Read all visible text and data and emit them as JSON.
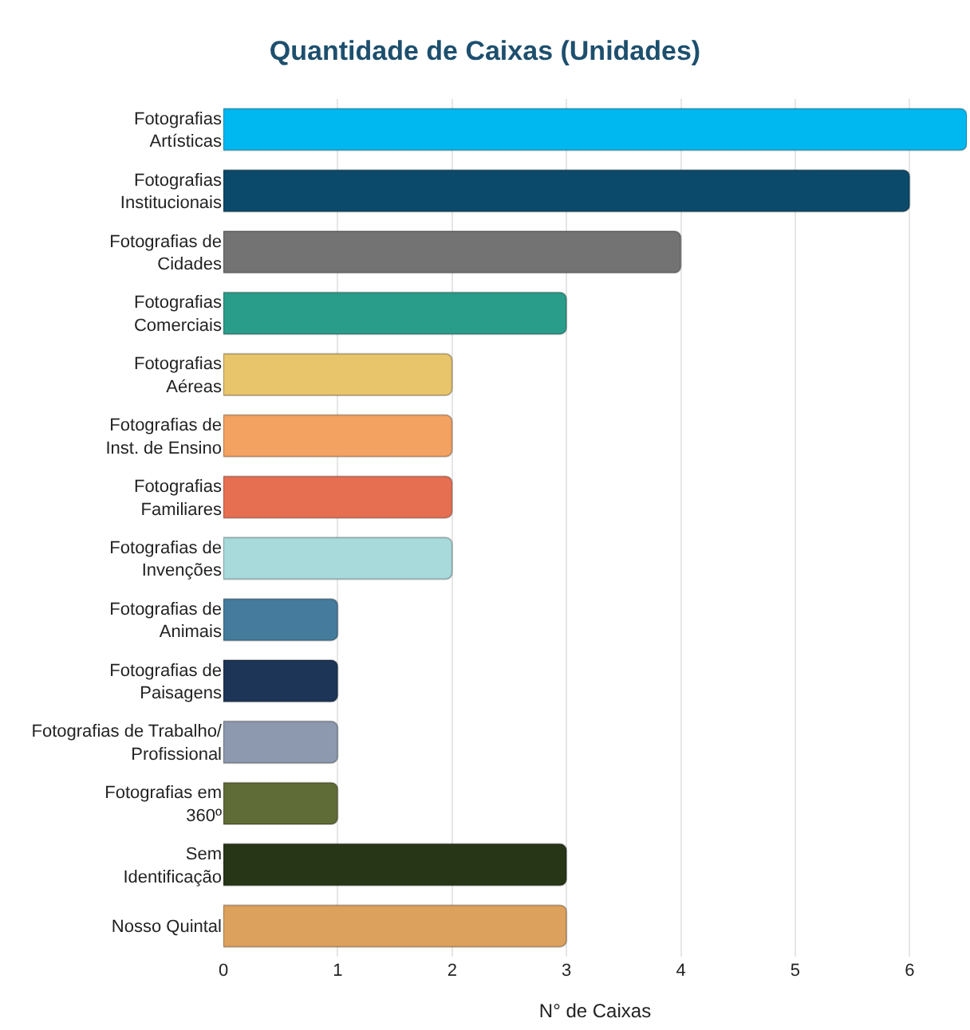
{
  "chart_data": {
    "type": "bar",
    "orientation": "horizontal",
    "title": "Quantidade de Caixas (Unidades)",
    "xlabel": "N° de Caixas",
    "categories": [
      "Fotografias\nArtísticas",
      "Fotografias\nInstitucionais",
      "Fotografias de\nCidades",
      "Fotografias\nComerciais",
      "Fotografias\nAéreas",
      "Fotografias de\nInst. de Ensino",
      "Fotografias\nFamiliares",
      "Fotografias de\nInvenções",
      "Fotografias de\nAnimais",
      "Fotografias de\nPaisagens",
      "Fotografias de Trabalho/\nProfissional",
      "Fotografias em\n360º",
      "Sem\nIdentificação",
      "Nosso Quintal"
    ],
    "values": [
      6.5,
      6,
      4,
      3,
      2,
      2,
      2,
      2,
      1,
      1,
      1,
      1,
      3,
      3
    ],
    "colors": [
      "#00b8f0",
      "#0b4a6a",
      "#737373",
      "#2a9d8a",
      "#e8c46a",
      "#f4a261",
      "#e76f51",
      "#a8dadc",
      "#457b9d",
      "#1d3557",
      "#8d99ae",
      "#606c38",
      "#283618",
      "#dda15e"
    ],
    "xlim": [
      0,
      6.5
    ],
    "xticks": [
      0,
      1,
      2,
      3,
      4,
      5,
      6
    ],
    "grid": "x",
    "legend": false
  }
}
